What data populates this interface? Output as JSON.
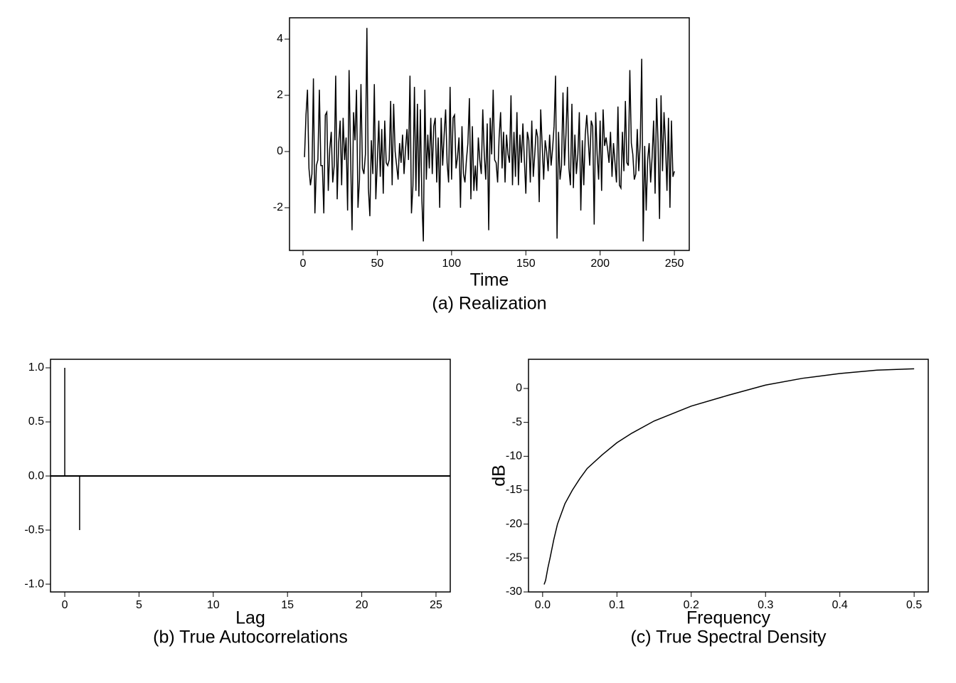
{
  "chart_data": [
    {
      "type": "line",
      "caption": "(a) Realization",
      "x_label": "Time",
      "color": "#000000",
      "x": [
        1,
        2,
        3,
        4,
        5,
        6,
        7,
        8,
        9,
        10,
        11,
        12,
        13,
        14,
        15,
        16,
        17,
        18,
        19,
        20,
        21,
        22,
        23,
        24,
        25,
        26,
        27,
        28,
        29,
        30,
        31,
        32,
        33,
        34,
        35,
        36,
        37,
        38,
        39,
        40,
        41,
        42,
        43,
        44,
        45,
        46,
        47,
        48,
        49,
        50,
        51,
        52,
        53,
        54,
        55,
        56,
        57,
        58,
        59,
        60,
        61,
        62,
        63,
        64,
        65,
        66,
        67,
        68,
        69,
        70,
        71,
        72,
        73,
        74,
        75,
        76,
        77,
        78,
        79,
        80,
        81,
        82,
        83,
        84,
        85,
        86,
        87,
        88,
        89,
        90,
        91,
        92,
        93,
        94,
        95,
        96,
        97,
        98,
        99,
        100,
        101,
        102,
        103,
        104,
        105,
        106,
        107,
        108,
        109,
        110,
        111,
        112,
        113,
        114,
        115,
        116,
        117,
        118,
        119,
        120,
        121,
        122,
        123,
        124,
        125,
        126,
        127,
        128,
        129,
        130,
        131,
        132,
        133,
        134,
        135,
        136,
        137,
        138,
        139,
        140,
        141,
        142,
        143,
        144,
        145,
        146,
        147,
        148,
        149,
        150,
        151,
        152,
        153,
        154,
        155,
        156,
        157,
        158,
        159,
        160,
        161,
        162,
        163,
        164,
        165,
        166,
        167,
        168,
        169,
        170,
        171,
        172,
        173,
        174,
        175,
        176,
        177,
        178,
        179,
        180,
        181,
        182,
        183,
        184,
        185,
        186,
        187,
        188,
        189,
        190,
        191,
        192,
        193,
        194,
        195,
        196,
        197,
        198,
        199,
        200,
        201,
        202,
        203,
        204,
        205,
        206,
        207,
        208,
        209,
        210,
        211,
        212,
        213,
        214,
        215,
        216,
        217,
        218,
        219,
        220,
        221,
        222,
        223,
        224,
        225,
        226,
        227,
        228,
        229,
        230,
        231,
        232,
        233,
        234,
        235,
        236,
        237,
        238,
        239,
        240,
        241,
        242,
        243,
        244,
        245,
        246,
        247,
        248,
        249,
        250
      ],
      "values": [
        -0.2,
        1.3,
        2.2,
        -0.6,
        -1.2,
        -0.8,
        2.6,
        -2.2,
        -0.5,
        -0.3,
        2.2,
        -0.5,
        -0.5,
        -2.2,
        1.3,
        1.4,
        -1.4,
        0.1,
        0.7,
        -1.1,
        -0.5,
        2.7,
        -1.7,
        0.3,
        1.1,
        -1.2,
        1.2,
        -0.3,
        0.5,
        -2.1,
        2.9,
        -0.1,
        -2.8,
        1.4,
        0.4,
        2.2,
        -2.0,
        -1.0,
        2.4,
        -0.6,
        -0.8,
        -0.1,
        4.4,
        -1.3,
        -2.3,
        0.4,
        -0.8,
        2.4,
        -1.7,
        -0.4,
        1.1,
        -0.9,
        0.8,
        -1.5,
        1.1,
        -0.4,
        -0.5,
        -0.3,
        1.8,
        -1.2,
        1.7,
        0.0,
        -0.5,
        -1.0,
        0.3,
        -0.4,
        0.6,
        -0.8,
        0.1,
        0.8,
        -0.3,
        2.7,
        -2.2,
        -1.2,
        2.3,
        -1.4,
        1.7,
        -1.6,
        1.5,
        -1.7,
        -3.2,
        2.2,
        -1.0,
        0.6,
        -0.6,
        1.2,
        -0.8,
        0.9,
        1.2,
        -1.1,
        0.5,
        -2.0,
        1.2,
        -0.5,
        0.6,
        1.5,
        -0.4,
        -1.1,
        2.3,
        -1.0,
        1.2,
        1.3,
        -0.6,
        -0.2,
        0.5,
        -2.0,
        0.9,
        -0.8,
        -1.1,
        -0.3,
        0.3,
        1.9,
        -1.7,
        0.9,
        -1.4,
        -0.5,
        -1.4,
        0.5,
        -0.3,
        -0.8,
        1.5,
        -0.1,
        -1.0,
        1.0,
        -2.8,
        1.2,
        -0.1,
        2.2,
        -0.3,
        -0.4,
        -1.1,
        0.5,
        1.4,
        -0.6,
        0.7,
        -1.1,
        0.6,
        -0.1,
        -0.4,
        2.0,
        -1.2,
        0.7,
        -0.9,
        1.4,
        -1.2,
        0.6,
        -0.4,
        1.0,
        -0.3,
        -1.5,
        0.7,
        0.4,
        -1.1,
        1.1,
        -0.9,
        -0.1,
        0.8,
        0.5,
        -1.8,
        1.5,
        0.2,
        -1.0,
        0.4,
        0.0,
        -0.7,
        0.6,
        -0.5,
        0.1,
        0.9,
        2.7,
        -3.1,
        0.7,
        -1.0,
        -0.5,
        2.1,
        -0.5,
        0.6,
        2.3,
        -0.6,
        -1.2,
        1.7,
        -1.3,
        0.6,
        -0.8,
        -0.1,
        1.4,
        -2.1,
        0.4,
        -1.2,
        0.6,
        1.3,
        0.4,
        -0.5,
        1.1,
        0.9,
        -2.6,
        1.4,
        -0.1,
        -1.0,
        1.1,
        -1.4,
        1.5,
        0.2,
        0.5,
        0.1,
        -0.4,
        0.7,
        -0.9,
        0.3,
        -0.4,
        -1.1,
        1.6,
        -1.2,
        -1.3,
        0.7,
        -0.7,
        1.8,
        -0.4,
        -0.5,
        2.9,
        0.3,
        -0.1,
        -1.0,
        -0.8,
        0.8,
        -0.7,
        0.3,
        3.3,
        -3.2,
        0.2,
        -2.1,
        -0.3,
        0.3,
        -1.1,
        -0.2,
        1.1,
        -1.5,
        1.9,
        0.3,
        -2.4,
        2.0,
        -0.7,
        1.4,
        0.3,
        -1.4,
        1.2,
        -2.0,
        1.1,
        -0.9,
        -0.7
      ],
      "xlim": [
        -9.1,
        260
      ],
      "xticks": [
        0,
        50,
        100,
        150,
        200,
        250
      ],
      "ylim": [
        -3.52,
        4.76
      ],
      "yticks": [
        -2,
        0,
        2,
        4
      ]
    },
    {
      "type": "stem",
      "caption": "(b) True Autocorrelations",
      "x_label": "Lag",
      "color": "#000000",
      "x": [
        0,
        1,
        2,
        3,
        4,
        5,
        6,
        7,
        8,
        9,
        10,
        11,
        12,
        13,
        14,
        15,
        16,
        17,
        18,
        19,
        20,
        21,
        22,
        23,
        24,
        25
      ],
      "values": [
        1.0,
        -0.5,
        0,
        0,
        0,
        0,
        0,
        0,
        0,
        0,
        0,
        0,
        0,
        0,
        0,
        0,
        0,
        0,
        0,
        0,
        0,
        0,
        0,
        0,
        0,
        0
      ],
      "xlim": [
        -0.96,
        25.96
      ],
      "xticks": [
        0,
        5,
        10,
        15,
        20,
        25
      ],
      "ylim": [
        -1.072,
        1.079
      ],
      "yticks": [
        {
          "value": -1.0,
          "label": "-1.0"
        },
        -0.5,
        {
          "value": 0.0,
          "label": "0.0"
        },
        0.5,
        {
          "value": 1.0,
          "label": "1.0"
        }
      ]
    },
    {
      "type": "line",
      "caption": "(c) True Spectral Density",
      "x_label": "Frequency",
      "y_label": "dB",
      "color": "#000000",
      "x": [
        0.002,
        0.004,
        0.007,
        0.01,
        0.015,
        0.02,
        0.03,
        0.04,
        0.05,
        0.06,
        0.08,
        0.1,
        0.12,
        0.15,
        0.2,
        0.25,
        0.3,
        0.35,
        0.4,
        0.45,
        0.5
      ],
      "values": [
        -28.9,
        -28.3,
        -26.5,
        -25,
        -22.3,
        -20,
        -17,
        -15,
        -13.3,
        -11.8,
        -9.8,
        -8,
        -6.6,
        -4.8,
        -2.6,
        -1,
        0.5,
        1.5,
        2.2,
        2.7,
        2.9
      ],
      "xlim": [
        -0.019,
        0.519
      ],
      "xticks": [
        {
          "value": 0.0,
          "label": "0.0"
        },
        0.1,
        0.2,
        0.3,
        0.4,
        0.5
      ],
      "ylim": [
        -30,
        4.3
      ],
      "yticks": [
        -30,
        -25,
        -20,
        -15,
        -10,
        -5,
        0
      ]
    }
  ]
}
